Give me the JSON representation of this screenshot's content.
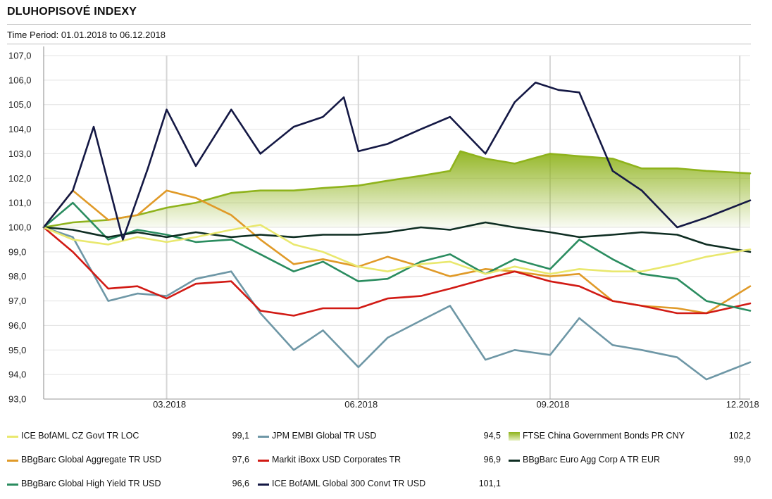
{
  "header": {
    "title": "DLUHOPISOVÉ INDEXY",
    "period": "Time Period: 01.01.2018 to 06.12.2018"
  },
  "chart_data": {
    "type": "line",
    "ylim": [
      93,
      107
    ],
    "yticks": [
      "93,0",
      "94,0",
      "95,0",
      "96,0",
      "97,0",
      "98,0",
      "99,0",
      "100,0",
      "101,0",
      "102,0",
      "103,0",
      "104,0",
      "105,0",
      "106,0",
      "107,0"
    ],
    "xlim": [
      "2018-01-01",
      "2018-12-06"
    ],
    "xticks": [
      {
        "date": "2018-03-01",
        "label": "03.2018"
      },
      {
        "date": "2018-06-01",
        "label": "06.2018"
      },
      {
        "date": "2018-09-01",
        "label": "09.2018"
      },
      {
        "date": "2018-12-01",
        "label": "12.2018"
      }
    ],
    "grid": true,
    "area_baseline": 100,
    "series": [
      {
        "name": "ICE BofAML CZ Govt TR LOC",
        "color": "#e9e86e",
        "last_value": "99,1",
        "x": [
          "2018-01-01",
          "2018-01-15",
          "2018-02-01",
          "2018-02-15",
          "2018-03-01",
          "2018-03-15",
          "2018-04-01",
          "2018-04-15",
          "2018-05-01",
          "2018-05-15",
          "2018-06-01",
          "2018-06-15",
          "2018-07-01",
          "2018-07-15",
          "2018-08-01",
          "2018-08-15",
          "2018-09-01",
          "2018-09-15",
          "2018-10-01",
          "2018-10-15",
          "2018-11-01",
          "2018-11-15",
          "2018-12-06"
        ],
        "y": [
          100.0,
          99.5,
          99.3,
          99.6,
          99.4,
          99.6,
          99.9,
          100.1,
          99.3,
          99.0,
          98.4,
          98.2,
          98.5,
          98.6,
          98.1,
          98.4,
          98.1,
          98.3,
          98.2,
          98.2,
          98.5,
          98.8,
          99.1
        ]
      },
      {
        "name": "JPM EMBI Global TR USD",
        "color": "#6e97a6",
        "last_value": "94,5",
        "x": [
          "2018-01-01",
          "2018-01-15",
          "2018-02-01",
          "2018-02-15",
          "2018-03-01",
          "2018-03-15",
          "2018-04-01",
          "2018-04-15",
          "2018-05-01",
          "2018-05-15",
          "2018-06-01",
          "2018-06-15",
          "2018-07-01",
          "2018-07-15",
          "2018-08-01",
          "2018-08-15",
          "2018-09-01",
          "2018-09-15",
          "2018-10-01",
          "2018-10-15",
          "2018-11-01",
          "2018-11-15",
          "2018-12-06"
        ],
        "y": [
          100.0,
          99.6,
          97.0,
          97.3,
          97.2,
          97.9,
          98.2,
          96.5,
          95.0,
          95.8,
          94.3,
          95.5,
          96.2,
          96.8,
          94.6,
          95.0,
          94.8,
          96.3,
          95.2,
          95.0,
          94.7,
          93.8,
          94.5
        ]
      },
      {
        "name": "FTSE China Government Bonds PR CNY",
        "color": "#8fb31c",
        "last_value": "102,2",
        "area": true,
        "x": [
          "2018-01-01",
          "2018-01-15",
          "2018-02-01",
          "2018-02-15",
          "2018-03-01",
          "2018-03-15",
          "2018-04-01",
          "2018-04-15",
          "2018-05-01",
          "2018-05-15",
          "2018-06-01",
          "2018-06-15",
          "2018-07-01",
          "2018-07-15",
          "2018-07-20",
          "2018-08-01",
          "2018-08-15",
          "2018-09-01",
          "2018-09-15",
          "2018-10-01",
          "2018-10-15",
          "2018-11-01",
          "2018-11-15",
          "2018-12-06"
        ],
        "y": [
          100.0,
          100.2,
          100.3,
          100.5,
          100.8,
          101.0,
          101.4,
          101.5,
          101.5,
          101.6,
          101.7,
          101.9,
          102.1,
          102.3,
          103.1,
          102.8,
          102.6,
          103.0,
          102.9,
          102.8,
          102.4,
          102.4,
          102.3,
          102.2
        ]
      },
      {
        "name": "BBgBarc Global Aggregate TR USD",
        "color": "#e09a28",
        "last_value": "97,6",
        "x": [
          "2018-01-01",
          "2018-01-15",
          "2018-02-01",
          "2018-02-15",
          "2018-03-01",
          "2018-03-15",
          "2018-04-01",
          "2018-04-15",
          "2018-05-01",
          "2018-05-15",
          "2018-06-01",
          "2018-06-15",
          "2018-07-01",
          "2018-07-15",
          "2018-08-01",
          "2018-08-15",
          "2018-09-01",
          "2018-09-15",
          "2018-10-01",
          "2018-10-15",
          "2018-11-01",
          "2018-11-15",
          "2018-12-06"
        ],
        "y": [
          100.0,
          101.5,
          100.3,
          100.5,
          101.5,
          101.2,
          100.5,
          99.5,
          98.5,
          98.7,
          98.4,
          98.8,
          98.4,
          98.0,
          98.3,
          98.2,
          98.0,
          98.1,
          97.0,
          96.8,
          96.7,
          96.5,
          97.6
        ]
      },
      {
        "name": "Markit iBoxx USD Corporates TR",
        "color": "#d11a14",
        "last_value": "96,9",
        "x": [
          "2018-01-01",
          "2018-01-15",
          "2018-02-01",
          "2018-02-15",
          "2018-03-01",
          "2018-03-15",
          "2018-04-01",
          "2018-04-15",
          "2018-05-01",
          "2018-05-15",
          "2018-06-01",
          "2018-06-15",
          "2018-07-01",
          "2018-07-15",
          "2018-08-01",
          "2018-08-15",
          "2018-09-01",
          "2018-09-15",
          "2018-10-01",
          "2018-10-15",
          "2018-11-01",
          "2018-11-15",
          "2018-12-06"
        ],
        "y": [
          100.0,
          99.0,
          97.5,
          97.6,
          97.1,
          97.7,
          97.8,
          96.6,
          96.4,
          96.7,
          96.7,
          97.1,
          97.2,
          97.5,
          97.9,
          98.2,
          97.8,
          97.6,
          97.0,
          96.8,
          96.5,
          96.5,
          96.9
        ]
      },
      {
        "name": "BBgBarc Euro Agg Corp A TR EUR",
        "color": "#0e2d22",
        "last_value": "99,0",
        "x": [
          "2018-01-01",
          "2018-01-15",
          "2018-02-01",
          "2018-02-15",
          "2018-03-01",
          "2018-03-15",
          "2018-04-01",
          "2018-04-15",
          "2018-05-01",
          "2018-05-15",
          "2018-06-01",
          "2018-06-15",
          "2018-07-01",
          "2018-07-15",
          "2018-08-01",
          "2018-08-15",
          "2018-09-01",
          "2018-09-15",
          "2018-10-01",
          "2018-10-15",
          "2018-11-01",
          "2018-11-15",
          "2018-12-06"
        ],
        "y": [
          100.0,
          99.9,
          99.6,
          99.8,
          99.6,
          99.8,
          99.6,
          99.7,
          99.6,
          99.7,
          99.7,
          99.8,
          100.0,
          99.9,
          100.2,
          100.0,
          99.8,
          99.6,
          99.7,
          99.8,
          99.7,
          99.3,
          99.0
        ]
      },
      {
        "name": "BBgBarc Global High Yield TR USD",
        "color": "#2a8c5f",
        "last_value": "96,6",
        "x": [
          "2018-01-01",
          "2018-01-15",
          "2018-02-01",
          "2018-02-15",
          "2018-03-01",
          "2018-03-15",
          "2018-04-01",
          "2018-04-15",
          "2018-05-01",
          "2018-05-15",
          "2018-06-01",
          "2018-06-15",
          "2018-07-01",
          "2018-07-15",
          "2018-08-01",
          "2018-08-15",
          "2018-09-01",
          "2018-09-15",
          "2018-10-01",
          "2018-10-15",
          "2018-11-01",
          "2018-11-15",
          "2018-12-06"
        ],
        "y": [
          100.0,
          101.0,
          99.5,
          99.9,
          99.7,
          99.4,
          99.5,
          98.9,
          98.2,
          98.6,
          97.8,
          97.9,
          98.6,
          98.9,
          98.1,
          98.7,
          98.3,
          99.5,
          98.7,
          98.1,
          97.9,
          97.0,
          96.6
        ]
      },
      {
        "name": "ICE BofAML Global 300 Convt TR USD",
        "color": "#141844",
        "last_value": "101,1",
        "x": [
          "2018-01-01",
          "2018-01-15",
          "2018-01-25",
          "2018-02-08",
          "2018-02-20",
          "2018-03-01",
          "2018-03-15",
          "2018-04-01",
          "2018-04-15",
          "2018-05-01",
          "2018-05-15",
          "2018-05-25",
          "2018-06-01",
          "2018-06-15",
          "2018-07-01",
          "2018-07-15",
          "2018-08-01",
          "2018-08-15",
          "2018-08-25",
          "2018-09-05",
          "2018-09-15",
          "2018-10-01",
          "2018-10-15",
          "2018-11-01",
          "2018-11-15",
          "2018-12-06"
        ],
        "y": [
          100.0,
          101.5,
          104.1,
          99.5,
          102.4,
          104.8,
          102.5,
          104.8,
          103.0,
          104.1,
          104.5,
          105.3,
          103.1,
          103.4,
          104.0,
          104.5,
          103.0,
          105.1,
          105.9,
          105.6,
          105.5,
          102.3,
          101.5,
          100.0,
          100.4,
          101.1
        ]
      }
    ]
  },
  "legend": [
    {
      "label": "ICE BofAML CZ Govt TR LOC",
      "value": "99,1",
      "color": "#e9e86e",
      "swatch": "line"
    },
    {
      "label": "JPM EMBI Global TR USD",
      "value": "94,5",
      "color": "#6e97a6",
      "swatch": "line"
    },
    {
      "label": "FTSE China Government Bonds PR CNY",
      "value": "102,2",
      "color": "#8fb31c",
      "swatch": "area"
    },
    {
      "label": "BBgBarc Global Aggregate TR USD",
      "value": "97,6",
      "color": "#e09a28",
      "swatch": "line"
    },
    {
      "label": "Markit iBoxx USD Corporates TR",
      "value": "96,9",
      "color": "#d11a14",
      "swatch": "line"
    },
    {
      "label": "BBgBarc Euro Agg Corp A TR EUR",
      "value": "99,0",
      "color": "#0e2d22",
      "swatch": "line"
    },
    {
      "label": "BBgBarc Global High Yield TR USD",
      "value": "96,6",
      "color": "#2a8c5f",
      "swatch": "line"
    },
    {
      "label": "ICE BofAML Global 300 Convt TR USD",
      "value": "101,1",
      "color": "#141844",
      "swatch": "line"
    }
  ]
}
